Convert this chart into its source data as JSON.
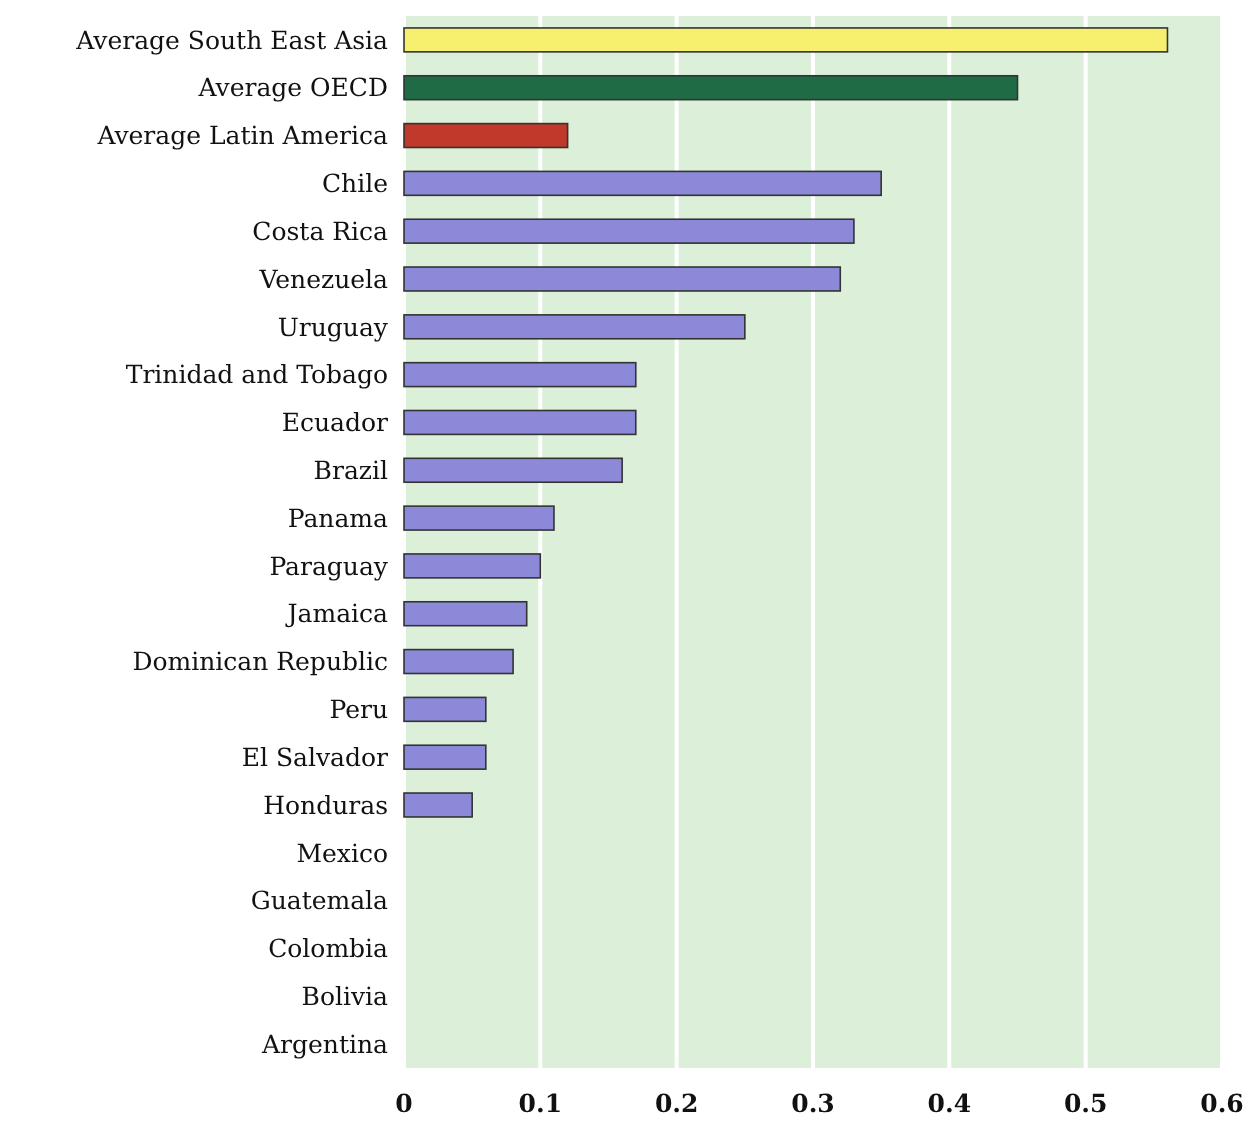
{
  "chart_data": {
    "type": "bar",
    "orientation": "horizontal",
    "categories": [
      "Average South East Asia",
      "Average OECD",
      "Average Latin America",
      "Chile",
      "Costa Rica",
      "Venezuela",
      "Uruguay",
      "Trinidad and Tobago",
      "Ecuador",
      "Brazil",
      "Panama",
      "Paraguay",
      "Jamaica",
      "Dominican Republic",
      "Peru",
      "El Salvador",
      "Honduras",
      "Mexico",
      "Guatemala",
      "Colombia",
      "Bolivia",
      "Argentina"
    ],
    "values": [
      0.56,
      0.45,
      0.12,
      0.35,
      0.33,
      0.32,
      0.25,
      0.17,
      0.17,
      0.16,
      0.11,
      0.1,
      0.09,
      0.08,
      0.06,
      0.06,
      0.05,
      null,
      null,
      null,
      null,
      null
    ],
    "colors": [
      "#f7f06e",
      "#1e6b45",
      "#c0392b",
      "#8c89d8",
      "#8c89d8",
      "#8c89d8",
      "#8c89d8",
      "#8c89d8",
      "#8c89d8",
      "#8c89d8",
      "#8c89d8",
      "#8c89d8",
      "#8c89d8",
      "#8c89d8",
      "#8c89d8",
      "#8c89d8",
      "#8c89d8",
      null,
      null,
      null,
      null,
      null
    ],
    "xlim": [
      0,
      0.6
    ],
    "xticks": [
      0,
      0.1,
      0.2,
      0.3,
      0.4,
      0.5,
      0.6
    ],
    "grid": "x"
  }
}
